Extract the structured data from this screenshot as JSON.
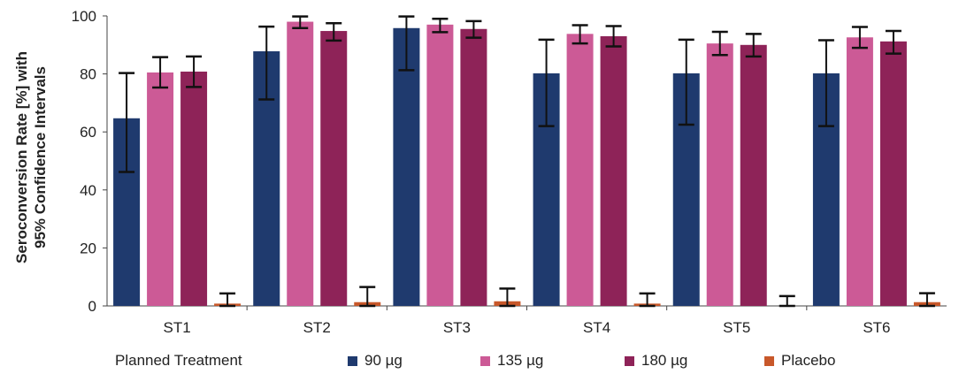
{
  "chart_data": {
    "type": "bar",
    "ylabel_line1": "Seroconversion Rate [%] with",
    "ylabel_line2": "95% Confidence Intervals",
    "ylim": [
      0,
      100
    ],
    "yticks": [
      0,
      20,
      40,
      60,
      80,
      100
    ],
    "categories": [
      "ST1",
      "ST2",
      "ST3",
      "ST4",
      "ST5",
      "ST6"
    ],
    "legend_title": "Planned Treatment",
    "series": [
      {
        "name": "90 µg",
        "color": "#1f3a6e",
        "values": [
          64.7,
          87.8,
          95.8,
          80.2,
          80.2,
          80.2
        ],
        "ci_low": [
          46.2,
          71.2,
          81.3,
          62.0,
          62.5,
          62.0
        ],
        "ci_high": [
          80.3,
          96.3,
          99.8,
          91.8,
          91.8,
          91.6
        ]
      },
      {
        "name": "135 µg",
        "color": "#cc5a96",
        "values": [
          80.5,
          98.0,
          97.0,
          93.8,
          90.5,
          92.6
        ],
        "ci_low": [
          75.3,
          95.8,
          94.4,
          90.5,
          86.5,
          89.0
        ],
        "ci_high": [
          85.8,
          99.8,
          99.0,
          96.8,
          94.5,
          96.2
        ],
        "shared": true
      },
      {
        "name": "180 µg",
        "color": "#8e2358",
        "values": [
          80.8,
          94.8,
          95.5,
          93.0,
          90.0,
          91.2
        ],
        "ci_low": [
          75.5,
          91.5,
          92.5,
          89.5,
          86.0,
          87.0
        ],
        "ci_high": [
          86.0,
          97.5,
          98.2,
          96.5,
          93.8,
          94.8
        ]
      },
      {
        "name": "Placebo",
        "color": "#c8582a",
        "values": [
          0.8,
          1.3,
          1.6,
          0.8,
          0,
          1.3
        ],
        "ci_low": [
          0,
          0,
          0,
          0,
          0,
          0
        ],
        "ci_high": [
          4.3,
          6.5,
          6.0,
          4.3,
          3.4,
          4.4
        ]
      }
    ]
  }
}
